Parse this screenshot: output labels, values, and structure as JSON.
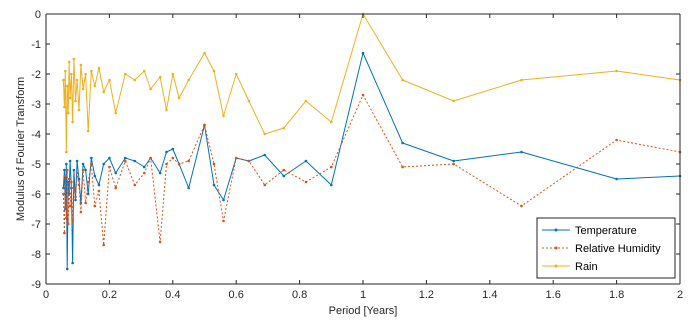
{
  "chart_data": {
    "type": "line",
    "xlabel": "Period [Years]",
    "ylabel": "Modulus of Fourier Transform",
    "xlim": [
      0,
      2
    ],
    "ylim": [
      -9,
      0
    ],
    "xticks": [
      0,
      0.2,
      0.4,
      0.6,
      0.8,
      1,
      1.2,
      1.4,
      1.6,
      1.8,
      2
    ],
    "xtick_labels": [
      "0",
      "0.2",
      "0.4",
      "0.6",
      "0.8",
      "1",
      "1.2",
      "1.4",
      "1.6",
      "1.8",
      "2"
    ],
    "yticks": [
      0,
      -1,
      -2,
      -3,
      -4,
      -5,
      -6,
      -7,
      -8,
      -9
    ],
    "ytick_labels": [
      "0",
      "-1",
      "-2",
      "-3",
      "-4",
      "-5",
      "-6",
      "-7",
      "-8",
      "-9"
    ],
    "grid": false,
    "legend_position": "bottom-right",
    "series": [
      {
        "name": "Temperature",
        "color": "#0072BD",
        "style": "solid",
        "marker": "dot",
        "x": [
          0.055,
          0.058,
          0.061,
          0.064,
          0.067,
          0.07,
          0.073,
          0.076,
          0.08,
          0.084,
          0.088,
          0.093,
          0.098,
          0.104,
          0.11,
          0.117,
          0.125,
          0.133,
          0.143,
          0.154,
          0.167,
          0.182,
          0.2,
          0.22,
          0.25,
          0.28,
          0.31,
          0.33,
          0.36,
          0.38,
          0.4,
          0.42,
          0.45,
          0.5,
          0.53,
          0.56,
          0.6,
          0.64,
          0.69,
          0.75,
          0.82,
          0.9,
          1.0,
          1.125,
          1.286,
          1.5,
          1.8,
          2.0
        ],
        "values": [
          -5.8,
          -5.2,
          -6.5,
          -5.0,
          -8.5,
          -5.6,
          -6.0,
          -4.9,
          -5.8,
          -8.3,
          -5.2,
          -6.2,
          -4.9,
          -5.5,
          -6.3,
          -5.0,
          -5.2,
          -6.0,
          -4.8,
          -5.4,
          -5.7,
          -5.0,
          -4.8,
          -5.3,
          -4.8,
          -4.9,
          -5.1,
          -4.8,
          -5.3,
          -4.6,
          -4.5,
          -5.0,
          -5.8,
          -3.7,
          -5.7,
          -6.2,
          -4.8,
          -4.9,
          -4.7,
          -5.4,
          -4.9,
          -5.7,
          -1.3,
          -4.3,
          -4.9,
          -4.6,
          -5.5,
          -5.4
        ]
      },
      {
        "name": "Relative Humidity",
        "color": "#D95319",
        "style": "dotted",
        "marker": "dot",
        "x": [
          0.055,
          0.058,
          0.061,
          0.064,
          0.067,
          0.07,
          0.073,
          0.076,
          0.08,
          0.084,
          0.088,
          0.093,
          0.098,
          0.104,
          0.11,
          0.117,
          0.125,
          0.133,
          0.143,
          0.154,
          0.167,
          0.182,
          0.2,
          0.22,
          0.25,
          0.28,
          0.31,
          0.33,
          0.36,
          0.38,
          0.4,
          0.42,
          0.45,
          0.5,
          0.53,
          0.56,
          0.6,
          0.64,
          0.69,
          0.75,
          0.82,
          0.9,
          1.0,
          1.125,
          1.286,
          1.5,
          1.8,
          2.0
        ],
        "values": [
          -6.0,
          -7.3,
          -5.4,
          -6.8,
          -5.2,
          -7.0,
          -5.5,
          -6.4,
          -5.6,
          -6.9,
          -5.8,
          -6.1,
          -5.3,
          -5.7,
          -6.6,
          -5.2,
          -6.3,
          -5.6,
          -5.0,
          -6.4,
          -5.9,
          -7.7,
          -5.1,
          -5.8,
          -4.9,
          -5.7,
          -5.3,
          -4.8,
          -7.6,
          -5.0,
          -4.8,
          -5.0,
          -4.9,
          -3.7,
          -5.0,
          -6.9,
          -4.8,
          -4.9,
          -5.7,
          -5.2,
          -5.6,
          -5.1,
          -2.7,
          -5.1,
          -5.0,
          -6.4,
          -4.2,
          -4.6
        ]
      },
      {
        "name": "Rain",
        "color": "#EDB120",
        "style": "solid",
        "marker": "dot",
        "x": [
          0.055,
          0.058,
          0.061,
          0.064,
          0.067,
          0.07,
          0.073,
          0.076,
          0.08,
          0.084,
          0.088,
          0.093,
          0.098,
          0.104,
          0.11,
          0.117,
          0.125,
          0.133,
          0.143,
          0.154,
          0.167,
          0.182,
          0.2,
          0.22,
          0.25,
          0.28,
          0.31,
          0.33,
          0.36,
          0.38,
          0.4,
          0.42,
          0.45,
          0.5,
          0.53,
          0.56,
          0.6,
          0.64,
          0.69,
          0.75,
          0.82,
          0.9,
          1.0,
          1.125,
          1.286,
          1.5,
          1.8,
          2.0
        ],
        "values": [
          -2.2,
          -3.1,
          -1.9,
          -4.6,
          -2.4,
          -3.3,
          -1.6,
          -2.8,
          -2.0,
          -3.6,
          -1.5,
          -2.9,
          -2.2,
          -3.2,
          -1.7,
          -2.5,
          -2.0,
          -3.9,
          -1.9,
          -2.4,
          -1.8,
          -2.6,
          -2.2,
          -3.3,
          -2.0,
          -2.2,
          -1.9,
          -2.5,
          -2.1,
          -3.2,
          -2.0,
          -2.8,
          -2.2,
          -1.3,
          -1.9,
          -3.4,
          -2.0,
          -2.9,
          -4.0,
          -3.8,
          -2.9,
          -3.6,
          0.0,
          -2.2,
          -2.9,
          -2.2,
          -1.9,
          -2.2
        ]
      }
    ]
  }
}
